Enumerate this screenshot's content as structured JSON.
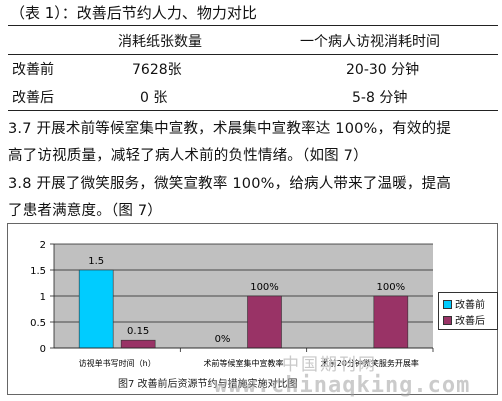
{
  "table": {
    "caption": "（表 1）：改善后节约人力、物力对比",
    "headers": [
      "",
      "消耗纸张数量",
      "一个病人访视消耗时间"
    ],
    "rows": [
      {
        "label": "改善前",
        "paper": "7628张",
        "time": "20-30 分钟"
      },
      {
        "label": "改善后",
        "paper": "0 张",
        "time": "5-8 分钟"
      }
    ]
  },
  "paragraphs": [
    {
      "line1": "3.7  开展术前等候室集中宣教，术晨集中宣教率达 100%，有效的提",
      "line2": "高了访视质量，减轻了病人术前的负性情绪。（如图 7）"
    },
    {
      "line1": "3.8  开展了微笑服务，微笑宣教率 100%，给病人带来了温暖，提高",
      "line2": "了患者满意度。（图 7）"
    }
  ],
  "figure": {
    "caption": "图7      改善前后资源节约与措施实施对比图",
    "watermark_cn": "中国期刊网",
    "watermark_url": "www.chinaqking.com"
  },
  "colors": {
    "before": "#00ccff",
    "after": "#993366",
    "plot_bg": "#c0c0c0"
  },
  "chart_data": {
    "type": "bar",
    "categories": [
      "访视单书写时间（h）",
      "术前等候室集中宣教率",
      "术前20分钟微笑服务开展率"
    ],
    "series": [
      {
        "name": "改善前",
        "values": [
          1.5,
          0,
          null
        ],
        "labels": [
          "1.5",
          "0%",
          ""
        ]
      },
      {
        "name": "改善后",
        "values": [
          0.15,
          1,
          1
        ],
        "labels": [
          "0.15",
          "100%",
          "100%"
        ]
      }
    ],
    "ylim": [
      0,
      2
    ],
    "yticks": [
      "0",
      "0.5",
      "1",
      "1.5",
      "2"
    ],
    "grid": true,
    "legend": "right"
  }
}
